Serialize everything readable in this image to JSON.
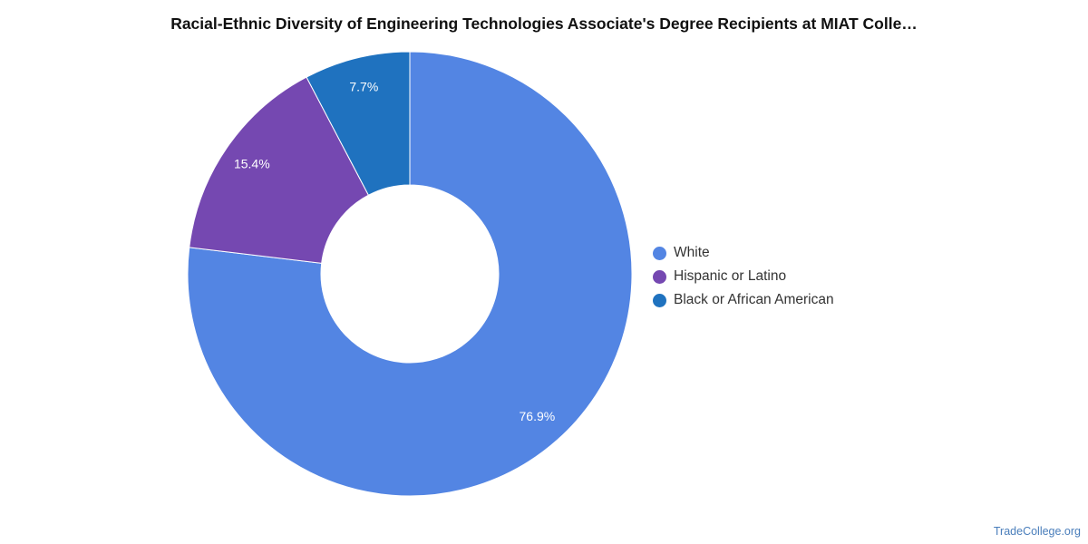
{
  "chart_data": {
    "type": "pie",
    "variant": "donut",
    "title": "Racial-Ethnic Diversity of Engineering Technologies Associate's Degree Recipients at MIAT Colle…",
    "slices": [
      {
        "label": "White",
        "value": 76.9,
        "display": "76.9%",
        "color": "#5385e3"
      },
      {
        "label": "Hispanic or Latino",
        "value": 15.4,
        "display": "15.4%",
        "color": "#7548b1"
      },
      {
        "label": "Black or African American",
        "value": 7.7,
        "display": "7.7%",
        "color": "#1f72bf"
      }
    ],
    "legend_position": "right",
    "start_angle": "12 o'clock",
    "direction": "clockwise"
  },
  "watermark": "TradeCollege.org"
}
